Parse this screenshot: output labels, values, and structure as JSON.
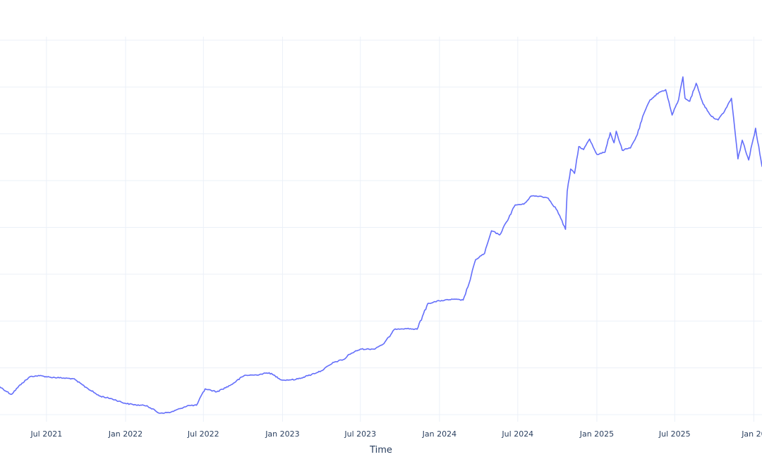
{
  "chart_data": {
    "type": "line",
    "title": "",
    "xlabel": "Time",
    "ylabel": "",
    "grid": true,
    "legend": "none",
    "xlim": [
      "2021-03-15",
      "2026-01-20"
    ],
    "ylim": [
      0,
      100
    ],
    "x_ticks": [
      {
        "date": "2021-07-01",
        "label": "Jul 2021"
      },
      {
        "date": "2022-01-01",
        "label": "Jan 2022"
      },
      {
        "date": "2022-07-01",
        "label": "Jul 2022"
      },
      {
        "date": "2023-01-01",
        "label": "Jan 2023"
      },
      {
        "date": "2023-07-01",
        "label": "Jul 2023"
      },
      {
        "date": "2024-01-01",
        "label": "Jan 2024"
      },
      {
        "date": "2024-07-01",
        "label": "Jul 2024"
      },
      {
        "date": "2025-01-01",
        "label": "Jan 2025"
      },
      {
        "date": "2025-07-01",
        "label": "Jul 2025"
      },
      {
        "date": "2026-01-01",
        "label": "Jan 20"
      }
    ],
    "y_gridlines": [
      0,
      12.5,
      25,
      37.5,
      50,
      62.5,
      75,
      87.5,
      100
    ],
    "series": [
      {
        "color": "#636efa",
        "x": [
          "2021-03-15",
          "2021-04-10",
          "2021-05-05",
          "2021-05-25",
          "2021-06-15",
          "2021-07-10",
          "2021-08-05",
          "2021-09-01",
          "2021-10-01",
          "2021-11-01",
          "2021-12-01",
          "2022-01-01",
          "2022-01-25",
          "2022-02-20",
          "2022-03-20",
          "2022-04-15",
          "2022-05-10",
          "2022-05-25",
          "2022-06-15",
          "2022-07-05",
          "2022-08-01",
          "2022-09-01",
          "2022-10-05",
          "2022-11-01",
          "2022-12-01",
          "2023-01-01",
          "2023-02-01",
          "2023-03-01",
          "2023-04-01",
          "2023-05-01",
          "2023-05-25",
          "2023-06-05",
          "2023-07-01",
          "2023-08-01",
          "2023-08-25",
          "2023-09-20",
          "2023-10-15",
          "2023-11-10",
          "2023-12-05",
          "2024-01-01",
          "2024-02-01",
          "2024-02-25",
          "2024-03-10",
          "2024-03-25",
          "2024-04-15",
          "2024-05-01",
          "2024-05-20",
          "2024-06-05",
          "2024-06-25",
          "2024-07-15",
          "2024-08-01",
          "2024-08-25",
          "2024-09-10",
          "2024-10-01",
          "2024-10-20",
          "2024-10-24",
          "2024-11-01",
          "2024-11-10",
          "2024-11-20",
          "2024-12-01",
          "2024-12-15",
          "2025-01-01",
          "2025-01-20",
          "2025-02-01",
          "2025-02-10",
          "2025-02-15",
          "2025-03-01",
          "2025-03-20",
          "2025-04-05",
          "2025-04-20",
          "2025-05-05",
          "2025-05-25",
          "2025-06-10",
          "2025-06-25",
          "2025-07-10",
          "2025-07-20",
          "2025-07-25",
          "2025-08-05",
          "2025-08-20",
          "2025-09-05",
          "2025-09-25",
          "2025-10-10",
          "2025-10-25",
          "2025-11-10",
          "2025-11-25",
          "2025-12-05",
          "2025-12-20",
          "2026-01-05",
          "2026-01-20"
        ],
        "y": [
          7.4,
          5.4,
          8.4,
          10.2,
          10.4,
          10.0,
          9.8,
          9.6,
          7.3,
          5.0,
          4.2,
          3.0,
          2.6,
          2.4,
          0.4,
          0.6,
          1.7,
          2.4,
          2.5,
          6.9,
          6.1,
          7.8,
          10.5,
          10.6,
          11.2,
          9.2,
          9.4,
          10.4,
          11.7,
          14.0,
          14.8,
          16.1,
          17.5,
          17.5,
          19.0,
          22.9,
          23.0,
          22.8,
          29.7,
          30.4,
          30.8,
          30.6,
          35.1,
          41.4,
          43.1,
          49.1,
          48.0,
          51.5,
          56.0,
          56.2,
          58.4,
          58.3,
          57.8,
          54.5,
          49.5,
          59.6,
          65.6,
          64.4,
          71.6,
          70.8,
          73.6,
          69.5,
          70.1,
          75.3,
          72.6,
          75.7,
          70.6,
          71.2,
          74.8,
          80.3,
          84.1,
          86.0,
          86.8,
          80.0,
          84.1,
          90.2,
          84.5,
          83.7,
          88.5,
          83.0,
          79.6,
          78.7,
          81.1,
          84.5,
          68.3,
          73.3,
          68.0,
          76.5,
          66.3
        ]
      }
    ]
  }
}
